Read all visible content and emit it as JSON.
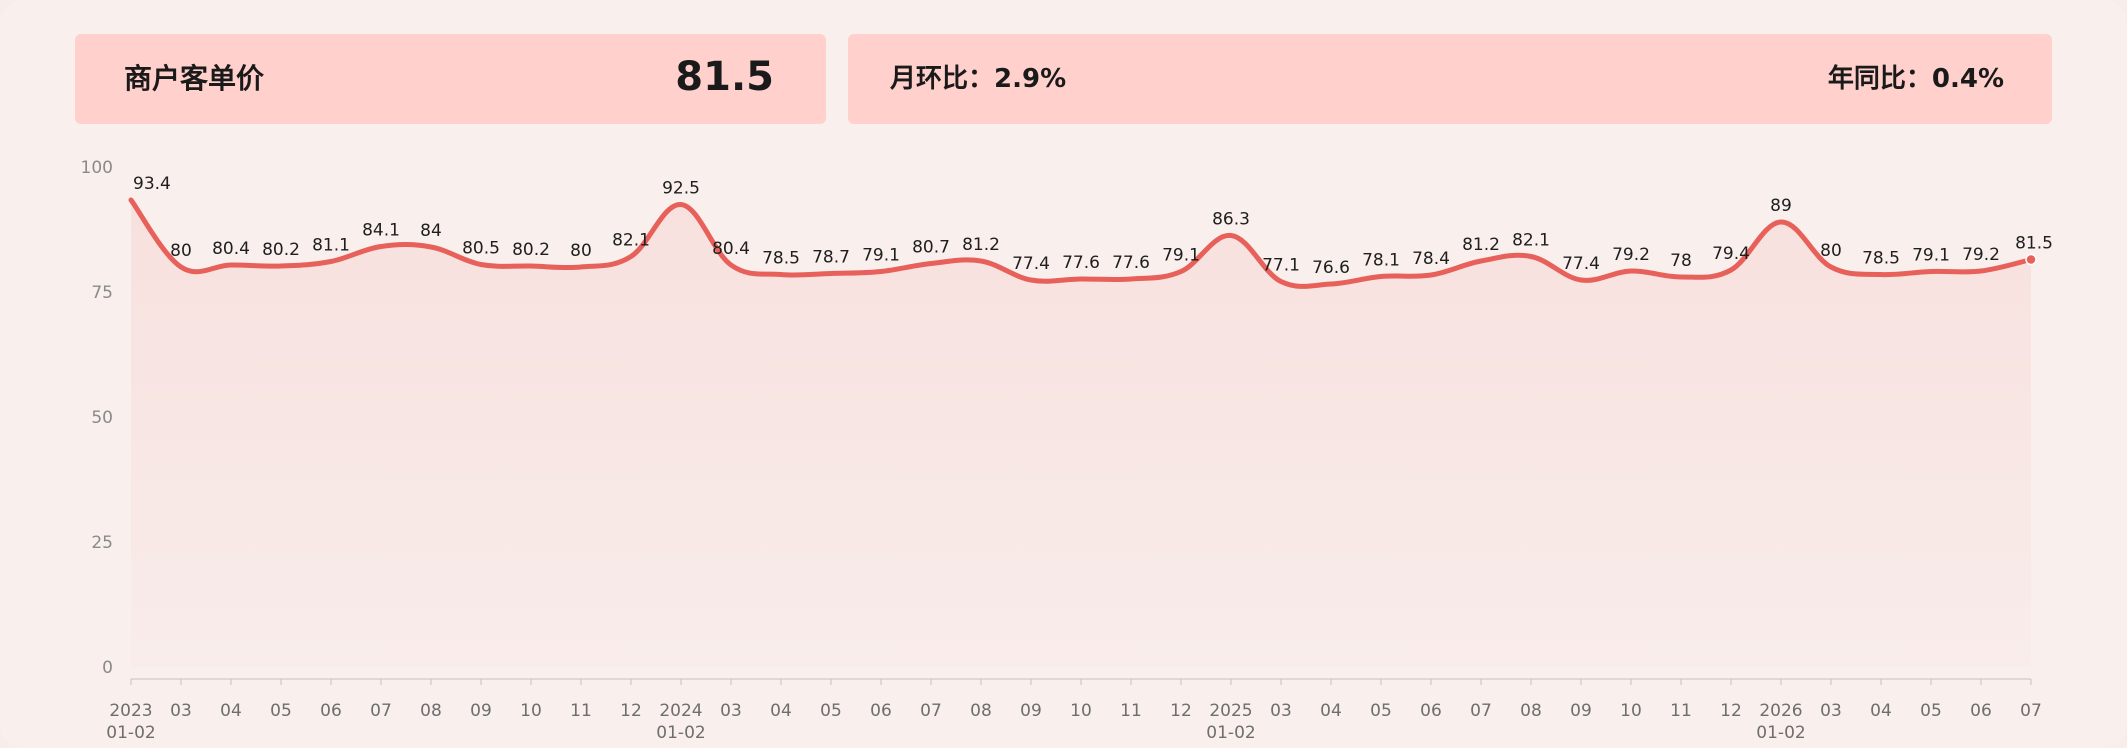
{
  "header": {
    "metric_label": "商户客单价",
    "metric_value": "81.5",
    "mom_label": "月环比：",
    "mom_value": "2.9%",
    "yoy_label": "年同比：",
    "yoy_value": "0.4%"
  },
  "colors": {
    "line": "#e8605a",
    "card_bg": "#ffd0cc",
    "panel_bg": "#f9efed"
  },
  "chart_data": {
    "type": "area",
    "title": "",
    "xlabel": "",
    "ylabel": "",
    "ylim": [
      0,
      100
    ],
    "yticks": [
      0,
      25,
      50,
      75,
      100
    ],
    "grid": false,
    "x": [
      [
        "2023",
        "01-02"
      ],
      [
        "03"
      ],
      [
        "04"
      ],
      [
        "05"
      ],
      [
        "06"
      ],
      [
        "07"
      ],
      [
        "08"
      ],
      [
        "09"
      ],
      [
        "10"
      ],
      [
        "11"
      ],
      [
        "12"
      ],
      [
        "2024",
        "01-02"
      ],
      [
        "03"
      ],
      [
        "04"
      ],
      [
        "05"
      ],
      [
        "06"
      ],
      [
        "07"
      ],
      [
        "08"
      ],
      [
        "09"
      ],
      [
        "10"
      ],
      [
        "11"
      ],
      [
        "12"
      ],
      [
        "2025",
        "01-02"
      ],
      [
        "03"
      ],
      [
        "04"
      ],
      [
        "05"
      ],
      [
        "06"
      ],
      [
        "07"
      ],
      [
        "08"
      ],
      [
        "09"
      ],
      [
        "10"
      ],
      [
        "11"
      ],
      [
        "12"
      ],
      [
        "2026",
        "01-02"
      ],
      [
        "03"
      ],
      [
        "04"
      ],
      [
        "05"
      ],
      [
        "06"
      ],
      [
        "07"
      ]
    ],
    "series": [
      {
        "values": [
          93.4,
          80,
          80.4,
          80.2,
          81.1,
          84.1,
          84,
          80.5,
          80.2,
          80,
          82.1,
          92.5,
          80.4,
          78.5,
          78.7,
          79.1,
          80.7,
          81.2,
          77.4,
          77.6,
          77.6,
          79.1,
          86.3,
          77.1,
          76.6,
          78.1,
          78.4,
          81.2,
          82.1,
          77.4,
          79.2,
          78,
          79.4,
          89,
          80,
          78.5,
          79.1,
          79.2,
          81.5
        ]
      }
    ]
  }
}
